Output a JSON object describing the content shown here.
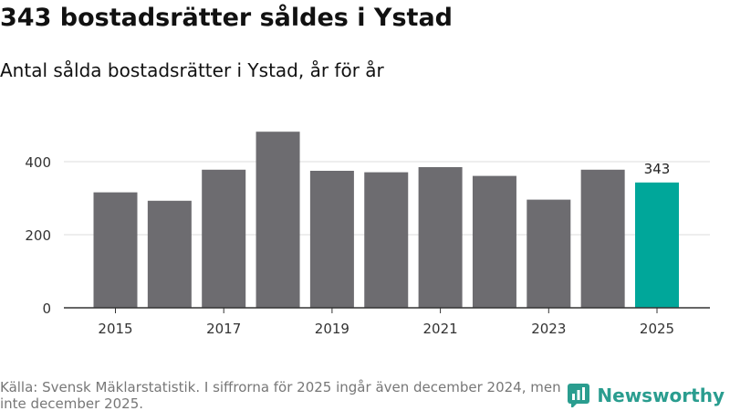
{
  "title": "343 bostadsrätter såldes i Ystad",
  "subtitle": "Antal sålda bostadsrätter i Ystad, år för år",
  "source": "Källa: Svensk Mäklarstatistik. I siffrorna för 2025 ingår även december 2024, men inte december 2025.",
  "logo_text": "Newsworthy",
  "colors": {
    "bar": "#6d6c70",
    "highlight": "#00a79a",
    "grid": "#dddddd",
    "axis": "#333333",
    "logo": "#2a9d8f"
  },
  "chart_data": {
    "type": "bar",
    "categories": [
      "2015",
      "2016",
      "2017",
      "2018",
      "2019",
      "2020",
      "2021",
      "2022",
      "2023",
      "2024",
      "2025"
    ],
    "values": [
      316,
      293,
      378,
      482,
      375,
      371,
      385,
      361,
      296,
      378,
      343
    ],
    "highlight_index": 10,
    "data_labels": [
      {
        "index": 10,
        "text": "343"
      }
    ],
    "x_tick_labels": [
      "2015",
      "2017",
      "2019",
      "2021",
      "2023",
      "2025"
    ],
    "y_ticks": [
      0,
      200,
      400
    ],
    "ylim": [
      0,
      500
    ],
    "grid": true,
    "title": "343 bostadsrätter såldes i Ystad",
    "xlabel": "",
    "ylabel": ""
  }
}
